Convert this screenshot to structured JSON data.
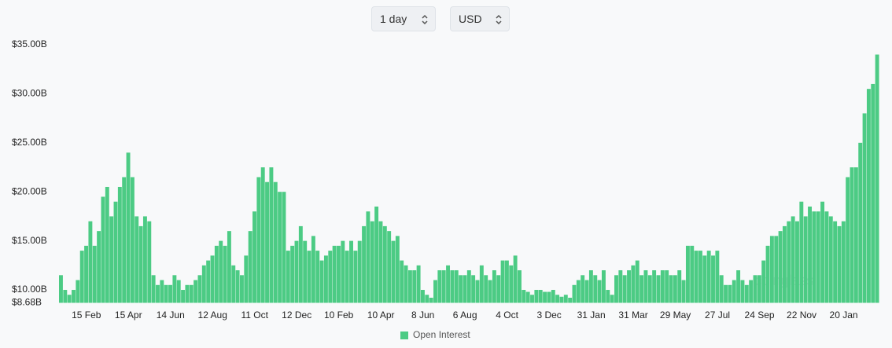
{
  "controls": {
    "interval": "1 day",
    "currency": "USD"
  },
  "chart_data": {
    "type": "bar",
    "series": [
      {
        "name": "Open Interest",
        "color": "#4ccb84",
        "values": [
          11.5,
          10,
          9.5,
          10,
          11,
          14,
          14.5,
          17,
          14.5,
          16,
          19.5,
          20.5,
          17.5,
          19,
          20.5,
          21.5,
          24,
          21.5,
          17.5,
          16.5,
          17.5,
          17,
          11.5,
          10.5,
          11,
          10.5,
          10.5,
          11.5,
          11,
          10,
          10.5,
          10.5,
          11,
          11.5,
          12.5,
          13,
          13.5,
          14.5,
          15,
          14.5,
          16,
          12.5,
          12,
          11.5,
          13.5,
          16,
          18,
          21.5,
          22.5,
          21,
          22.5,
          21,
          20,
          20,
          14,
          14.5,
          15,
          16.5,
          15,
          14,
          15.5,
          14,
          13,
          13.5,
          14,
          14.5,
          14.5,
          15,
          14,
          15,
          14,
          15,
          16.5,
          18,
          17,
          18.5,
          17,
          16.5,
          16,
          15,
          15.5,
          13,
          12.5,
          12,
          12,
          12.5,
          10,
          9.5,
          9.2,
          11,
          12,
          12,
          12.5,
          12,
          12,
          11.5,
          11.5,
          12,
          11.5,
          11,
          12.5,
          11.5,
          11,
          12,
          11.5,
          13,
          13,
          12.5,
          13.5,
          12,
          10,
          9.8,
          9.5,
          10,
          10,
          9.8,
          9.8,
          10,
          9.5,
          9.3,
          9.5,
          9.2,
          10.5,
          11,
          11.5,
          11,
          12,
          11.5,
          11,
          12,
          10,
          9.5,
          11.5,
          12,
          11.5,
          12,
          12.5,
          13,
          11.5,
          12,
          11.5,
          12,
          11.5,
          12,
          12,
          11.5,
          11.5,
          12,
          11,
          14.5,
          14.5,
          14,
          14,
          13.5,
          14,
          13.5,
          14,
          11.5,
          10.5,
          10.5,
          11,
          12,
          11,
          10.5,
          11,
          11.5,
          11.5,
          13,
          14.5,
          15.5,
          15.5,
          16,
          16.5,
          17,
          17.5,
          17,
          19,
          17.5,
          18.5,
          18,
          18,
          19,
          18,
          17.5,
          17,
          16.5,
          17,
          21.5,
          22.5,
          22.5,
          25,
          28,
          30.5,
          31,
          34
        ]
      }
    ],
    "categories": [
      null,
      null,
      null,
      null,
      null,
      null,
      "15 Feb",
      null,
      null,
      null,
      null,
      null,
      null,
      null,
      null,
      null,
      "15 Apr",
      null,
      null,
      null,
      null,
      null,
      null,
      null,
      null,
      null,
      "14 Jun",
      null,
      null,
      null,
      null,
      null,
      null,
      null,
      null,
      null,
      "12 Aug",
      null,
      null,
      null,
      null,
      null,
      null,
      null,
      null,
      null,
      "11 Oct",
      null,
      null,
      null,
      null,
      null,
      null,
      null,
      null,
      null,
      "12 Dec",
      null,
      null,
      null,
      null,
      null,
      null,
      null,
      null,
      null,
      "10 Feb",
      null,
      null,
      null,
      null,
      null,
      null,
      null,
      null,
      null,
      "10 Apr",
      null,
      null,
      null,
      null,
      null,
      null,
      null,
      null,
      null,
      "8 Jun",
      null,
      null,
      null,
      null,
      null,
      null,
      null,
      null,
      null,
      "6 Aug",
      null,
      null,
      null,
      null,
      null,
      null,
      null,
      null,
      null,
      "4 Oct",
      null,
      null,
      null,
      null,
      null,
      null,
      null,
      null,
      null,
      "3 Dec",
      null,
      null,
      null,
      null,
      null,
      null,
      null,
      null,
      null,
      "31 Jan",
      null,
      null,
      null,
      null,
      null,
      null,
      null,
      null,
      null,
      "31 Mar",
      null,
      null,
      null,
      null,
      null,
      null,
      null,
      null,
      null,
      "29 May",
      null,
      null,
      null,
      null,
      null,
      null,
      null,
      null,
      null,
      "27 Jul",
      null,
      null,
      null,
      null,
      null,
      null,
      null,
      null,
      null,
      "24 Sep",
      null,
      null,
      null,
      null,
      null,
      null,
      null,
      null,
      null,
      "22 Nov",
      null,
      null,
      null,
      null,
      null,
      null,
      null,
      null,
      null,
      "20 Jan",
      null,
      null,
      null,
      null,
      null,
      null,
      null,
      null
    ],
    "ylim": [
      8.68,
      35
    ],
    "yticks": [
      {
        "value": 8.68,
        "label": "$8.68B"
      },
      {
        "value": 10,
        "label": "$10.00B"
      },
      {
        "value": 15,
        "label": "$15.00B"
      },
      {
        "value": 20,
        "label": "$20.00B"
      },
      {
        "value": 25,
        "label": "$25.00B"
      },
      {
        "value": 30,
        "label": "$30.00B"
      },
      {
        "value": 35,
        "label": "$35.00B"
      }
    ],
    "grid": false,
    "legend": "bottom",
    "watermark": "coinglass"
  }
}
